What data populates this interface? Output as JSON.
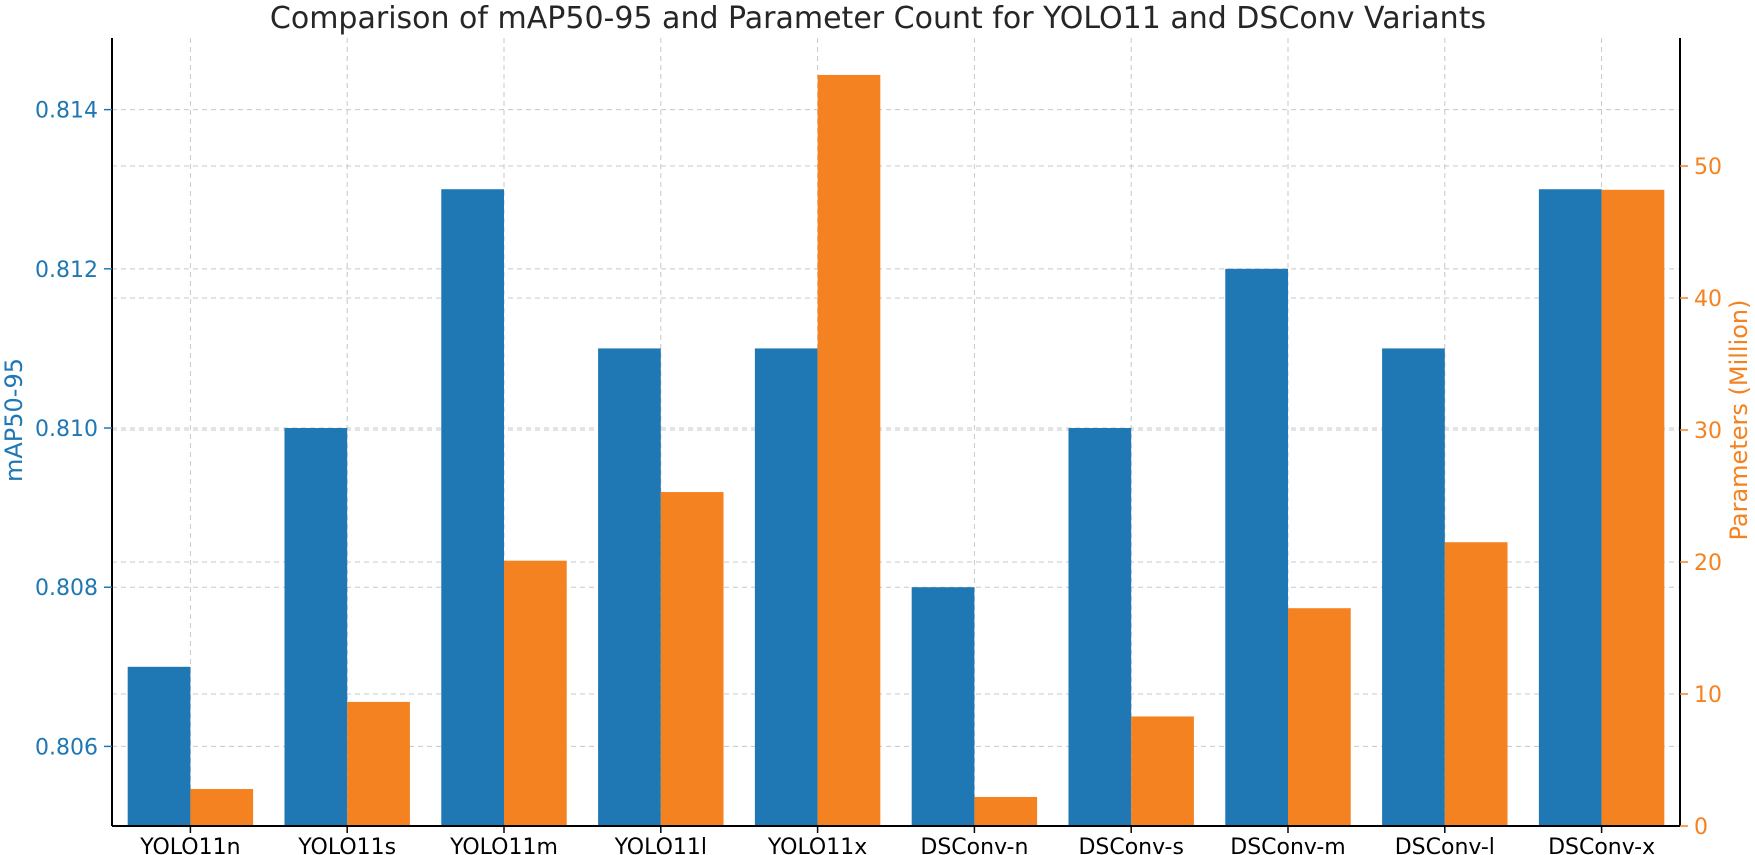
{
  "chart_data": {
    "type": "bar",
    "title": "Comparison of mAP50-95 and Parameter Count for YOLO11 and DSConv Variants",
    "categories": [
      "YOLO11n",
      "YOLO11s",
      "YOLO11m",
      "YOLO11l",
      "YOLO11x",
      "DSConv-n",
      "DSConv-s",
      "DSConv-m",
      "DSConv-l",
      "DSConv-x"
    ],
    "series": [
      {
        "name": "mAP50-95",
        "axis": "left",
        "color": "#1f77b4",
        "values": [
          0.807,
          0.81,
          0.813,
          0.811,
          0.811,
          0.808,
          0.81,
          0.812,
          0.811,
          0.813
        ]
      },
      {
        "name": "Parameters (Million)",
        "axis": "right",
        "color": "#f58220",
        "values": [
          2.8,
          9.4,
          20.1,
          25.3,
          56.9,
          2.2,
          8.3,
          16.5,
          21.5,
          48.2
        ]
      }
    ],
    "ylabel_left": "mAP50-95",
    "ylabel_right": "Parameters (Million)",
    "ylim_left": [
      0.805,
      0.8149
    ],
    "ylim_right": [
      0,
      59.7
    ],
    "yticks_left": [
      "0.806",
      "0.808",
      "0.810",
      "0.812",
      "0.814"
    ],
    "yticks_right": [
      "0",
      "10",
      "20",
      "30",
      "40",
      "50"
    ],
    "grid": true,
    "left_color": "#1f77b4",
    "right_color": "#f58220"
  }
}
